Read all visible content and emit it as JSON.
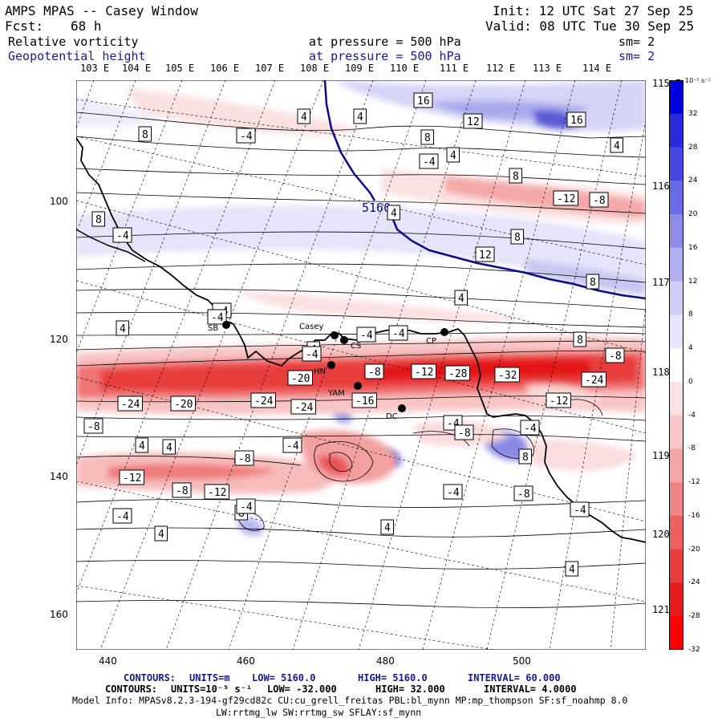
{
  "header": {
    "model": "AMPS MPAS -- Casey Window",
    "init": "Init: 12 UTC Sat 27 Sep 25",
    "fcst_label": "Fcst:",
    "fcst_value": "68 h",
    "valid": "Valid: 08 UTC Tue 30 Sep 25",
    "field1": "Relative vorticity",
    "field1_level": "at pressure =  500 hPa",
    "field1_sm": "sm= 2",
    "field2": "Geopotential height",
    "field2_level": "at pressure =  500 hPa",
    "field2_sm": "sm= 2"
  },
  "top_lon_labels": [
    "103 E",
    "104 E",
    "105 E",
    "106 E",
    "107 E",
    "108 E",
    "109 E",
    "110 E",
    "111 E",
    "112 E",
    "113 E",
    "114 E"
  ],
  "right_lon_labels": [
    "115 E",
    "116 E",
    "117 E",
    "118 E",
    "119 E",
    "120 E",
    "121 E"
  ],
  "x_ticks": [
    "440",
    "460",
    "480",
    "500"
  ],
  "y_ticks": [
    "100",
    "120",
    "140",
    "160"
  ],
  "colorbar": {
    "unit": "10⁻⁵ s⁻¹",
    "labels": [
      "32",
      "28",
      "24",
      "20",
      "16",
      "12",
      "8",
      "4",
      "0",
      "-4",
      "-8",
      "-12",
      "-16",
      "-20",
      "-24",
      "-28",
      "-32"
    ],
    "colors": [
      "#0000dd",
      "#2a2ad8",
      "#4848e0",
      "#6a6ae4",
      "#8c8ce8",
      "#b0b0f0",
      "#cfcff6",
      "#e6e6fa",
      "#ffffff",
      "#fbe2e2",
      "#f8c8c8",
      "#f4a6a6",
      "#f08484",
      "#ec6060",
      "#e83e3e",
      "#e41c1c",
      "#ff0000"
    ]
  },
  "stations": [
    {
      "name": "Casey"
    },
    {
      "name": "CS"
    },
    {
      "name": "SB"
    },
    {
      "name": "CP"
    },
    {
      "name": "HN"
    },
    {
      "name": "YAM"
    },
    {
      "name": "DC"
    }
  ],
  "height_contour_label": "5160",
  "contour_labels": [
    "16",
    "12",
    "16",
    "4",
    "4",
    "-4",
    "8",
    "8",
    "4",
    "-4",
    "4",
    "8",
    "-12",
    "-8",
    "4",
    "8",
    "-4",
    "8",
    "12",
    "8",
    "4",
    "-4",
    "8",
    "-4",
    "4",
    "-4",
    "4",
    "-4",
    "-8",
    "-4",
    "-20",
    "-8",
    "-12",
    "-28",
    "-32",
    "-24",
    "-24",
    "-20",
    "-24",
    "-16",
    "-24",
    "-12",
    "-8",
    "-4",
    "-8",
    "-4",
    "4",
    "4",
    "-8",
    "-4",
    "8",
    "-12",
    "-8",
    "-12",
    "-4",
    "-8",
    "-4",
    "4",
    "8",
    "4",
    "4",
    "-4",
    "-4"
  ],
  "footer": {
    "line1": {
      "label": "CONTOURS:",
      "units": "UNITS=m",
      "low": "LOW=  5160.0",
      "high": "HIGH=  5160.0",
      "interval": "INTERVAL=   60.000"
    },
    "line2": {
      "label": "CONTOURS:",
      "units": "UNITS=10⁻⁵ s⁻¹",
      "low": "LOW= -32.000",
      "high": "HIGH=  32.000",
      "interval": "INTERVAL=   4.0000"
    },
    "model_info": "Model Info: MPASv8.2.3-194-gf29cd82c CU:cu_grell_freitas PBL:bl_mynn MP:mp_thompson SF:sf_noahmp 8.0",
    "model_info2": "LW:rrtmg_lw SW:rrtmg_sw SFLAY:sf_mynn"
  }
}
